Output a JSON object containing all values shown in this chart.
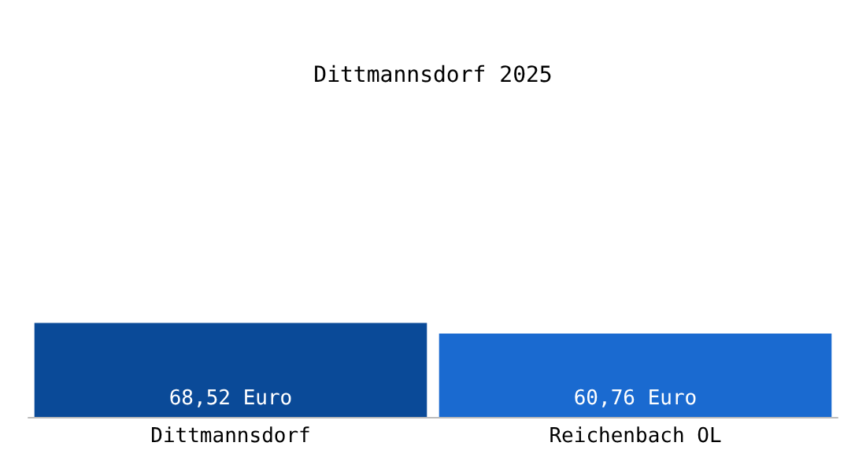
{
  "chart_data": {
    "type": "bar",
    "title": "Dittmannsdorf 2025",
    "categories": [
      "Dittmannsdorf",
      "Reichenbach OL"
    ],
    "values": [
      68.52,
      60.76
    ],
    "colors": [
      "#0a4a98",
      "#1a6ad0"
    ],
    "value_labels": [
      "68,52 Euro",
      "60,76 Euro"
    ],
    "tick_labels": "x"
  }
}
